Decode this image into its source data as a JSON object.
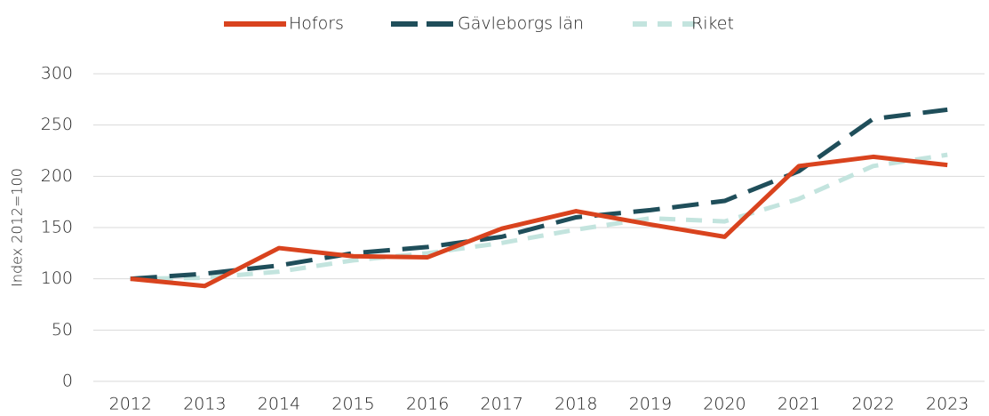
{
  "chart_data": {
    "type": "line",
    "y_label": "Index 2012=100",
    "x": [
      "2012",
      "2013",
      "2014",
      "2015",
      "2016",
      "2017",
      "2018",
      "2019",
      "2020",
      "2021",
      "2022",
      "2023"
    ],
    "series": [
      {
        "name": "Hofors",
        "color": "#d9431e",
        "dash": "solid",
        "values": [
          100,
          93,
          130,
          122,
          121,
          149,
          166,
          153,
          141,
          210,
          219,
          211
        ]
      },
      {
        "name": "Gävleborgs län",
        "color": "#1f4e5a",
        "dash": "long",
        "values": [
          100,
          105,
          113,
          125,
          131,
          141,
          160,
          167,
          176,
          205,
          256,
          265
        ]
      },
      {
        "name": "Riket",
        "color": "#c3e4de",
        "dash": "medium",
        "values": [
          100,
          101,
          107,
          118,
          125,
          135,
          148,
          159,
          156,
          178,
          210,
          221
        ]
      }
    ],
    "ylim": [
      0,
      300
    ],
    "yticks": [
      0,
      50,
      100,
      150,
      200,
      250,
      300
    ],
    "grid": true,
    "legend": "top"
  }
}
